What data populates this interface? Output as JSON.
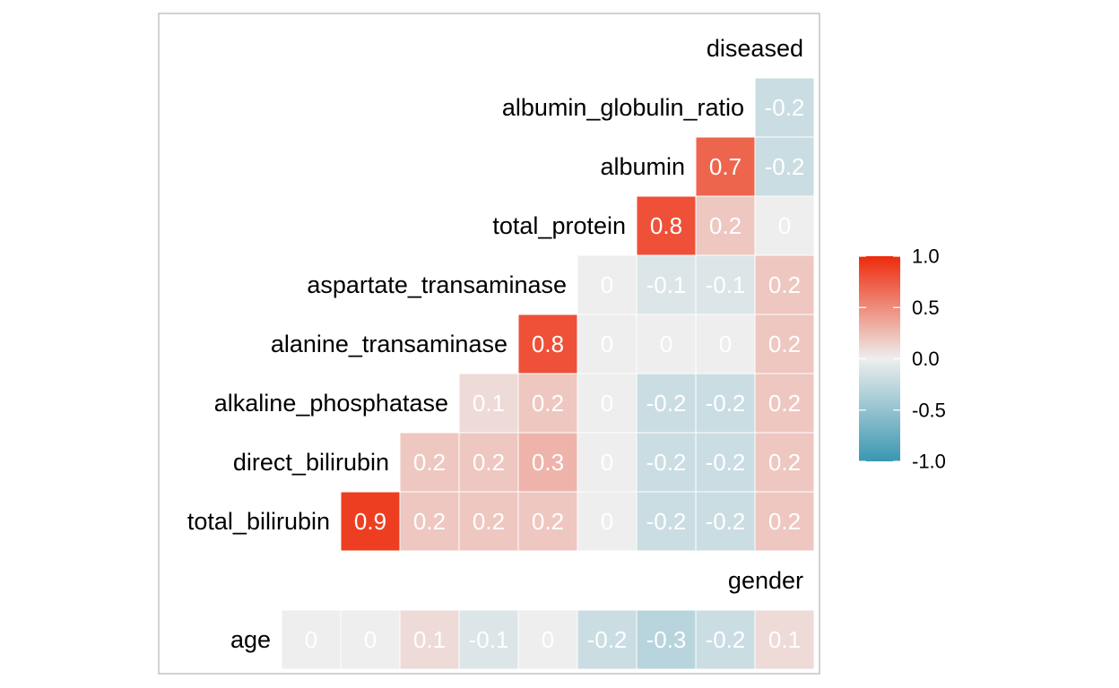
{
  "chart_data": {
    "type": "heatmap",
    "variables": [
      "age",
      "gender",
      "total_bilirubin",
      "direct_bilirubin",
      "alkaline_phosphatase",
      "alanine_transaminase",
      "aspartate_transaminase",
      "total_protein",
      "albumin",
      "albumin_globulin_ratio",
      "diseased"
    ],
    "rows": [
      {
        "label": "diseased",
        "values": [],
        "display": []
      },
      {
        "label": "albumin_globulin_ratio",
        "values": [
          -0.2
        ],
        "display": [
          "-0.2"
        ]
      },
      {
        "label": "albumin",
        "values": [
          0.7,
          -0.2
        ],
        "display": [
          "0.7",
          "-0.2"
        ]
      },
      {
        "label": "total_protein",
        "values": [
          0.8,
          0.2,
          0.0
        ],
        "display": [
          "0.8",
          "0.2",
          "0"
        ]
      },
      {
        "label": "aspartate_transaminase",
        "values": [
          0.0,
          -0.1,
          -0.1,
          0.2
        ],
        "display": [
          "0",
          "-0.1",
          "-0.1",
          "0.2"
        ]
      },
      {
        "label": "alanine_transaminase",
        "values": [
          0.8,
          0.0,
          0.0,
          0.0,
          0.2
        ],
        "display": [
          "0.8",
          "0",
          "0",
          "0",
          "0.2"
        ]
      },
      {
        "label": "alkaline_phosphatase",
        "values": [
          0.1,
          0.2,
          0.0,
          -0.2,
          -0.2,
          0.2
        ],
        "display": [
          "0.1",
          "0.2",
          "0",
          "-0.2",
          "-0.2",
          "0.2"
        ]
      },
      {
        "label": "direct_bilirubin",
        "values": [
          0.2,
          0.2,
          0.3,
          0.0,
          -0.2,
          -0.2,
          0.2
        ],
        "display": [
          "0.2",
          "0.2",
          "0.3",
          "0",
          "-0.2",
          "-0.2",
          "0.2"
        ]
      },
      {
        "label": "total_bilirubin",
        "values": [
          0.9,
          0.2,
          0.2,
          0.2,
          0.0,
          -0.2,
          -0.2,
          0.2
        ],
        "display": [
          "0.9",
          "0.2",
          "0.2",
          "0.2",
          "0",
          "-0.2",
          "-0.2",
          "0.2"
        ]
      },
      {
        "label": "gender",
        "values": [],
        "display": []
      },
      {
        "label": "age",
        "values": [
          0.0,
          0.0,
          0.1,
          -0.1,
          0.0,
          -0.2,
          -0.3,
          -0.2,
          0.1
        ],
        "display": [
          "0",
          "0",
          "0.1",
          "-0.1",
          "0",
          "-0.2",
          "-0.3",
          "-0.2",
          "0.1"
        ]
      }
    ],
    "legend": {
      "ticks": [
        "1.0",
        "0.5",
        "0.0",
        "-0.5",
        "-1.0"
      ],
      "tick_values": [
        1.0,
        0.5,
        0.0,
        -0.5,
        -1.0
      ],
      "range": [
        -1.0,
        1.0
      ],
      "placement": "right"
    },
    "colors": {
      "low": "#3a97b2",
      "mid": "#eeeeee",
      "high": "#ee2a0a",
      "value_text": "#ffffff",
      "panel_border": "#b3b3b3"
    }
  }
}
